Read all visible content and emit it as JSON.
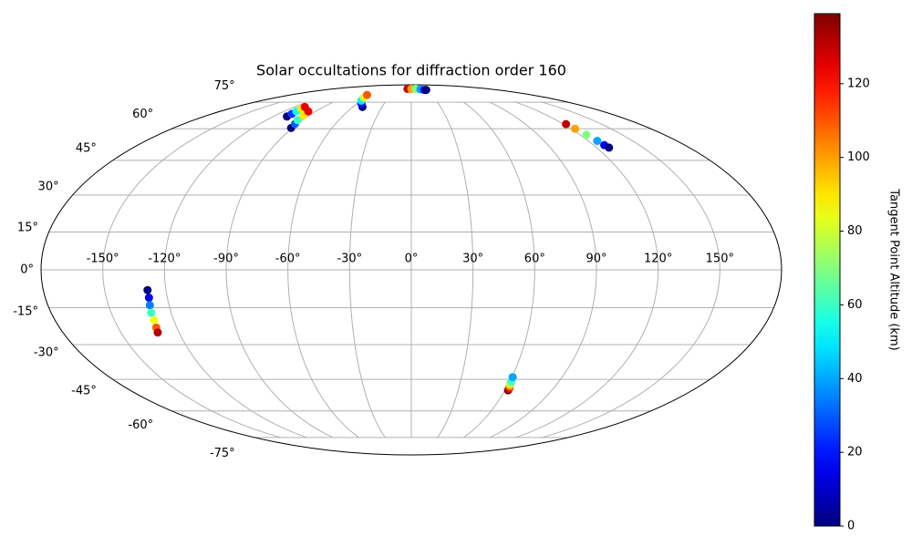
{
  "chart_data": {
    "type": "scatter",
    "projection": "mollweide",
    "title": "Solar occultations for diffraction order 160",
    "xticks": [
      {
        "value": -150,
        "label": "-150°"
      },
      {
        "value": -120,
        "label": "-120°"
      },
      {
        "value": -90,
        "label": "-90°"
      },
      {
        "value": -60,
        "label": "-60°"
      },
      {
        "value": -30,
        "label": "-30°"
      },
      {
        "value": 0,
        "label": "0°"
      },
      {
        "value": 30,
        "label": "30°"
      },
      {
        "value": 60,
        "label": "60°"
      },
      {
        "value": 90,
        "label": "90°"
      },
      {
        "value": 120,
        "label": "120°"
      },
      {
        "value": 150,
        "label": "150°"
      }
    ],
    "yticks": [
      {
        "value": -75,
        "label": "-75°"
      },
      {
        "value": -60,
        "label": "-60°"
      },
      {
        "value": -45,
        "label": "-45°"
      },
      {
        "value": -30,
        "label": "-30°"
      },
      {
        "value": -15,
        "label": "-15°"
      },
      {
        "value": 0,
        "label": "0°"
      },
      {
        "value": 15,
        "label": "15°"
      },
      {
        "value": 30,
        "label": "30°"
      },
      {
        "value": 45,
        "label": "45°"
      },
      {
        "value": 60,
        "label": "60°"
      },
      {
        "value": 75,
        "label": "75°"
      }
    ],
    "grid": true,
    "x": [
      -129,
      -129,
      -129.5,
      -130,
      -130,
      -130.5,
      -131,
      62,
      62,
      61.5,
      61,
      61,
      60.5,
      -9,
      0,
      10,
      20,
      27,
      31,
      -50,
      -55,
      -60,
      -63,
      -66,
      -108,
      -108,
      -108.5,
      -109,
      -109,
      -91,
      -92,
      -94,
      -95,
      -97,
      122,
      123,
      124.5,
      126,
      127,
      128
    ],
    "y": [
      -8,
      -11,
      -14,
      -17,
      -20,
      -23,
      -25,
      -50,
      -49,
      -48,
      -47,
      -46,
      -44,
      85,
      85,
      85,
      84.5,
      84,
      84,
      72,
      74,
      76,
      78,
      80,
      66.5,
      68,
      69.5,
      71,
      72,
      60.4,
      62.5,
      64.5,
      67,
      69.4,
      62.4,
      60,
      57,
      54,
      52,
      50.8
    ],
    "color_values": [
      0,
      15,
      35,
      60,
      85,
      110,
      132,
      138,
      120,
      100,
      80,
      60,
      40,
      130,
      100,
      70,
      40,
      15,
      0,
      0,
      20,
      50,
      80,
      110,
      0,
      25,
      55,
      90,
      125,
      0,
      30,
      60,
      90,
      125,
      130,
      100,
      70,
      40,
      15,
      0
    ],
    "colormap": "jet",
    "clim": [
      0,
      139
    ],
    "cticks": [
      0,
      20,
      40,
      60,
      80,
      100,
      120
    ],
    "colorbar_label": "Tangent Point Altitude (km)"
  }
}
